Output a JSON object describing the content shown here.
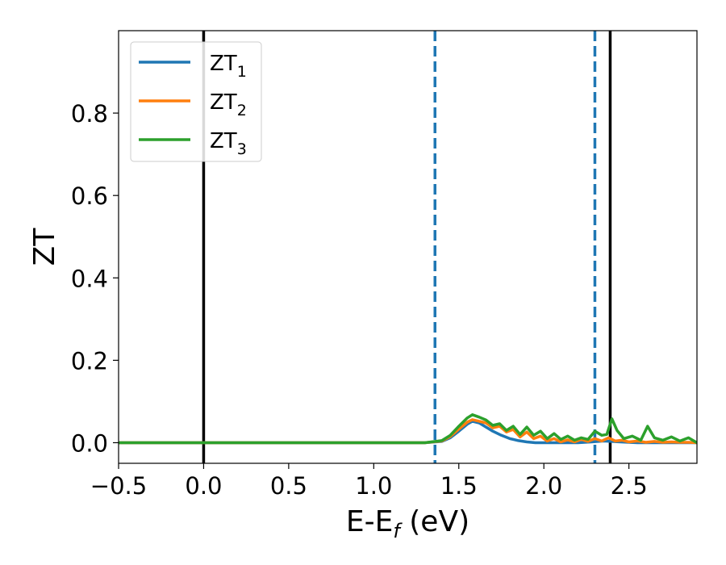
{
  "chart_data": {
    "type": "line",
    "title": "",
    "xlabel": {
      "base": "E-E",
      "sub": "f",
      "suffix": " (eV)"
    },
    "ylabel": "ZT",
    "xlim": [
      -0.5,
      2.9
    ],
    "ylim": [
      -0.05,
      1.0
    ],
    "xticks": [
      -0.5,
      0.0,
      0.5,
      1.0,
      1.5,
      2.0,
      2.5
    ],
    "xtick_labels": [
      "−0.5",
      "0.0",
      "0.5",
      "1.0",
      "1.5",
      "2.0",
      "2.5"
    ],
    "yticks": [
      0.0,
      0.2,
      0.4,
      0.6,
      0.8
    ],
    "ytick_labels": [
      "0.0",
      "0.2",
      "0.4",
      "0.6",
      "0.8"
    ],
    "grid": false,
    "legend_position": "upper-left",
    "vlines": [
      {
        "x": 0.0,
        "style": "solid",
        "color": "#000000"
      },
      {
        "x": 2.39,
        "style": "solid",
        "color": "#000000"
      },
      {
        "x": 1.36,
        "style": "dashed",
        "color": "#1f77b4"
      },
      {
        "x": 2.3,
        "style": "dashed",
        "color": "#1f77b4"
      }
    ],
    "series": [
      {
        "name": {
          "base": "ZT",
          "sub": "1"
        },
        "color": "#1f77b4",
        "x": [
          -0.5,
          1.3,
          1.4,
          1.45,
          1.5,
          1.55,
          1.58,
          1.62,
          1.66,
          1.7,
          1.75,
          1.8,
          1.85,
          1.9,
          1.95,
          2.0,
          2.1,
          2.2,
          2.28,
          2.35,
          2.4,
          2.45,
          2.5,
          2.55,
          2.6,
          2.7,
          2.8,
          2.9
        ],
        "y": [
          0.0,
          0.0,
          0.003,
          0.012,
          0.028,
          0.045,
          0.052,
          0.048,
          0.038,
          0.028,
          0.018,
          0.01,
          0.005,
          0.002,
          0.0,
          0.0,
          0.0,
          0.0,
          0.002,
          0.004,
          0.003,
          0.002,
          0.001,
          0.0,
          0.0,
          0.0,
          0.0,
          0.0
        ]
      },
      {
        "name": {
          "base": "ZT",
          "sub": "2"
        },
        "color": "#ff7f0e",
        "x": [
          -0.5,
          1.3,
          1.4,
          1.45,
          1.5,
          1.55,
          1.58,
          1.62,
          1.66,
          1.7,
          1.74,
          1.78,
          1.82,
          1.86,
          1.9,
          1.94,
          1.98,
          2.02,
          2.06,
          2.1,
          2.14,
          2.18,
          2.22,
          2.26,
          2.3,
          2.34,
          2.38,
          2.42,
          2.46,
          2.5,
          2.55,
          2.6,
          2.65,
          2.7,
          2.75,
          2.8,
          2.85,
          2.9
        ],
        "y": [
          0.0,
          0.0,
          0.004,
          0.015,
          0.033,
          0.05,
          0.056,
          0.052,
          0.048,
          0.036,
          0.04,
          0.026,
          0.032,
          0.014,
          0.026,
          0.01,
          0.016,
          0.004,
          0.01,
          0.002,
          0.007,
          0.002,
          0.008,
          0.003,
          0.01,
          0.004,
          0.012,
          0.004,
          0.006,
          0.002,
          0.004,
          0.001,
          0.003,
          0.001,
          0.002,
          0.001,
          0.001,
          0.0
        ]
      },
      {
        "name": {
          "base": "ZT",
          "sub": "3"
        },
        "color": "#2ca02c",
        "x": [
          -0.5,
          1.3,
          1.4,
          1.45,
          1.5,
          1.55,
          1.58,
          1.62,
          1.66,
          1.7,
          1.74,
          1.78,
          1.82,
          1.86,
          1.9,
          1.94,
          1.98,
          2.02,
          2.06,
          2.1,
          2.14,
          2.18,
          2.22,
          2.26,
          2.3,
          2.34,
          2.37,
          2.4,
          2.43,
          2.47,
          2.52,
          2.57,
          2.61,
          2.65,
          2.7,
          2.75,
          2.8,
          2.85,
          2.9
        ],
        "y": [
          0.0,
          0.0,
          0.005,
          0.018,
          0.04,
          0.06,
          0.068,
          0.062,
          0.055,
          0.042,
          0.046,
          0.03,
          0.04,
          0.02,
          0.038,
          0.018,
          0.028,
          0.01,
          0.022,
          0.008,
          0.016,
          0.006,
          0.012,
          0.008,
          0.028,
          0.018,
          0.02,
          0.058,
          0.03,
          0.01,
          0.016,
          0.006,
          0.04,
          0.012,
          0.006,
          0.014,
          0.004,
          0.012,
          0.0
        ]
      }
    ]
  }
}
